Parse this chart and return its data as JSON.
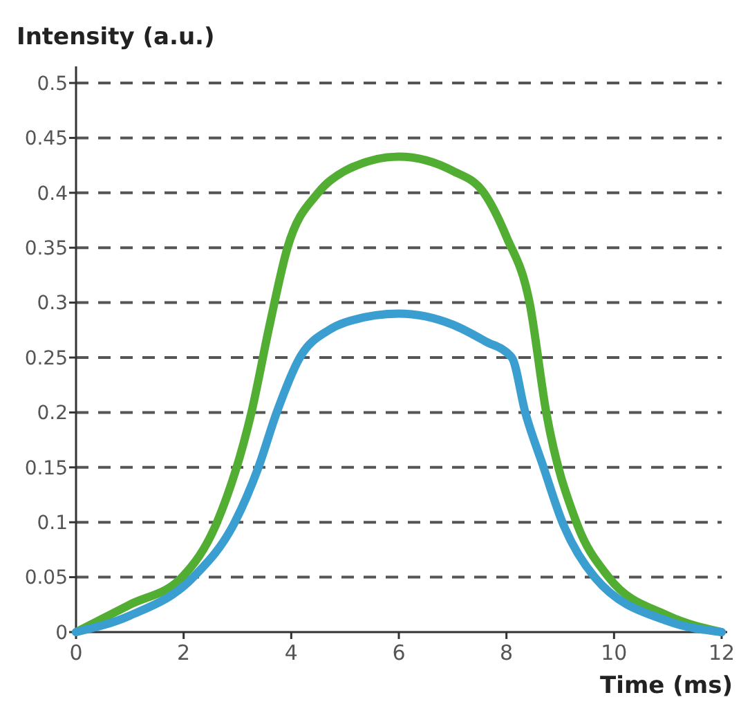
{
  "chart_data": {
    "type": "line",
    "ylabel": "Intensity (a.u.)",
    "xlabel": "Time (ms)",
    "xlim": [
      0,
      12
    ],
    "ylim": [
      0,
      0.5
    ],
    "xticks": [
      0,
      2,
      4,
      6,
      8,
      10,
      12
    ],
    "yticks": [
      0,
      0.05,
      0.1,
      0.15,
      0.2,
      0.25,
      0.3,
      0.35,
      0.4,
      0.45,
      0.5
    ],
    "grid": "y",
    "line_style": "solid",
    "marker": "none",
    "series": [
      {
        "color": "#52ae32",
        "x": [
          0,
          1,
          1.97,
          2.62,
          3.26,
          3.6,
          3.93,
          4.5,
          5,
          6,
          7,
          7.58,
          8,
          8.43,
          8.74,
          9.3,
          9.9,
          11,
          12
        ],
        "values": [
          0,
          0.025,
          0.05,
          0.1,
          0.2,
          0.28,
          0.35,
          0.4,
          0.42,
          0.433,
          0.42,
          0.4,
          0.36,
          0.3,
          0.2,
          0.1,
          0.05,
          0.015,
          0
        ]
      },
      {
        "color": "#3a9fd0",
        "x": [
          0,
          1,
          2.18,
          2.95,
          3.39,
          3.73,
          4.16,
          4.7,
          5,
          6,
          7,
          7.6,
          8.1,
          8.35,
          8.69,
          9.04,
          9.64,
          11,
          12
        ],
        "values": [
          0,
          0.015,
          0.05,
          0.1,
          0.15,
          0.2,
          0.25,
          0.275,
          0.282,
          0.29,
          0.28,
          0.265,
          0.25,
          0.2,
          0.15,
          0.1,
          0.05,
          0.01,
          0
        ]
      }
    ]
  }
}
